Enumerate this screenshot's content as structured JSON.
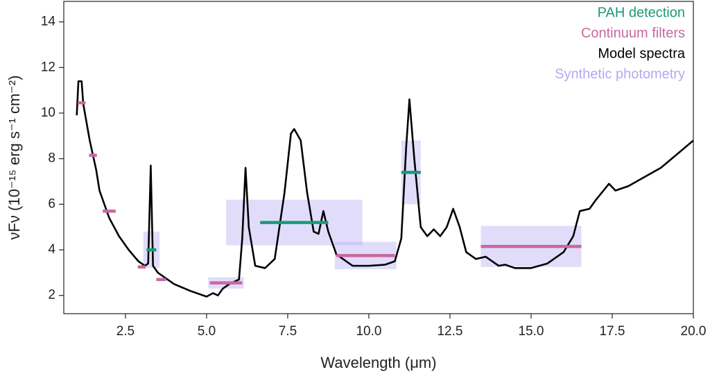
{
  "chart_data": {
    "type": "line",
    "x_label": "Wavelength (μm)",
    "y_label": "νFν (10⁻¹⁵ erg s⁻¹ cm⁻²)",
    "xlim": [
      0.6,
      20
    ],
    "ylim": [
      1.2,
      14.9
    ],
    "xticks": [
      2.5,
      {
        "value": 5,
        "label": "5.0"
      },
      7.5,
      {
        "value": 10,
        "label": "10.0"
      },
      12.5,
      {
        "value": 15,
        "label": "15.0"
      },
      17.5,
      {
        "value": 20,
        "label": "20.0"
      }
    ],
    "yticks": [
      2,
      4,
      6,
      8,
      10,
      12,
      14
    ],
    "legend": "upper right",
    "series": [
      {
        "name": "PAH detection",
        "color": "#1a9a78",
        "type": "segment",
        "x": [
          3.3,
          7.7,
          11.3
        ],
        "values": [
          4.0,
          5.2,
          7.4
        ],
        "xerr": [
          0.15,
          1.05,
          0.3
        ]
      },
      {
        "name": "Continuum filters",
        "color": "#c8689e",
        "type": "segment",
        "x": [
          1.15,
          1.5,
          2.0,
          3.0,
          3.6,
          5.6,
          9.9,
          15.0
        ],
        "values": [
          10.45,
          8.15,
          5.7,
          3.25,
          2.7,
          2.55,
          3.75,
          4.15
        ],
        "xerr": [
          0.12,
          0.12,
          0.2,
          0.12,
          0.15,
          0.5,
          0.9,
          1.55
        ]
      },
      {
        "name": "Model spectra",
        "color": "#000000",
        "type": "line",
        "x": [
          1.0,
          1.05,
          1.15,
          1.2,
          1.4,
          1.6,
          1.7,
          1.8,
          2.0,
          2.3,
          2.6,
          2.9,
          3.1,
          3.2,
          3.28,
          3.35,
          3.5,
          4.0,
          4.5,
          5.0,
          5.2,
          5.35,
          5.5,
          5.7,
          6.0,
          6.1,
          6.2,
          6.3,
          6.5,
          6.8,
          7.1,
          7.4,
          7.6,
          7.7,
          7.9,
          8.1,
          8.3,
          8.45,
          8.6,
          8.75,
          9.0,
          9.5,
          10.0,
          10.5,
          10.8,
          11.0,
          11.15,
          11.25,
          11.4,
          11.6,
          11.8,
          12.0,
          12.2,
          12.4,
          12.6,
          12.8,
          13.0,
          13.3,
          13.6,
          14.0,
          14.2,
          14.5,
          15.0,
          15.5,
          16.0,
          16.3,
          16.5,
          16.8,
          17.0,
          17.4,
          17.6,
          18.0,
          18.5,
          19.0,
          19.5,
          20.0
        ],
        "values": [
          9.9,
          11.4,
          11.4,
          10.4,
          8.8,
          7.5,
          6.6,
          6.2,
          5.4,
          4.6,
          4.0,
          3.5,
          3.3,
          3.4,
          7.7,
          3.3,
          3.0,
          2.5,
          2.2,
          1.95,
          2.1,
          2.0,
          2.3,
          2.5,
          2.7,
          4.5,
          7.6,
          5.0,
          3.3,
          3.2,
          3.6,
          6.5,
          9.1,
          9.3,
          8.8,
          6.5,
          4.8,
          4.7,
          5.7,
          4.8,
          3.8,
          3.3,
          3.3,
          3.35,
          3.5,
          4.5,
          8.5,
          10.6,
          8.0,
          5.0,
          4.6,
          4.9,
          4.6,
          5.0,
          5.8,
          5.0,
          3.9,
          3.6,
          3.7,
          3.3,
          3.35,
          3.2,
          3.2,
          3.4,
          3.9,
          4.6,
          5.7,
          5.8,
          6.2,
          6.9,
          6.6,
          6.8,
          7.2,
          7.6,
          8.2,
          8.8
        ]
      },
      {
        "name": "Synthetic photometry",
        "color": "#b4a8f2",
        "type": "band",
        "x": [
          3.3,
          5.6,
          7.7,
          9.9,
          11.3,
          15.0
        ],
        "values": [
          4.0,
          2.55,
          5.2,
          3.75,
          7.4,
          4.15
        ],
        "xerr": [
          0.25,
          0.55,
          2.1,
          0.95,
          0.3,
          1.55
        ],
        "yerr": [
          0.8,
          0.25,
          1.0,
          0.6,
          1.4,
          0.9
        ]
      }
    ]
  }
}
